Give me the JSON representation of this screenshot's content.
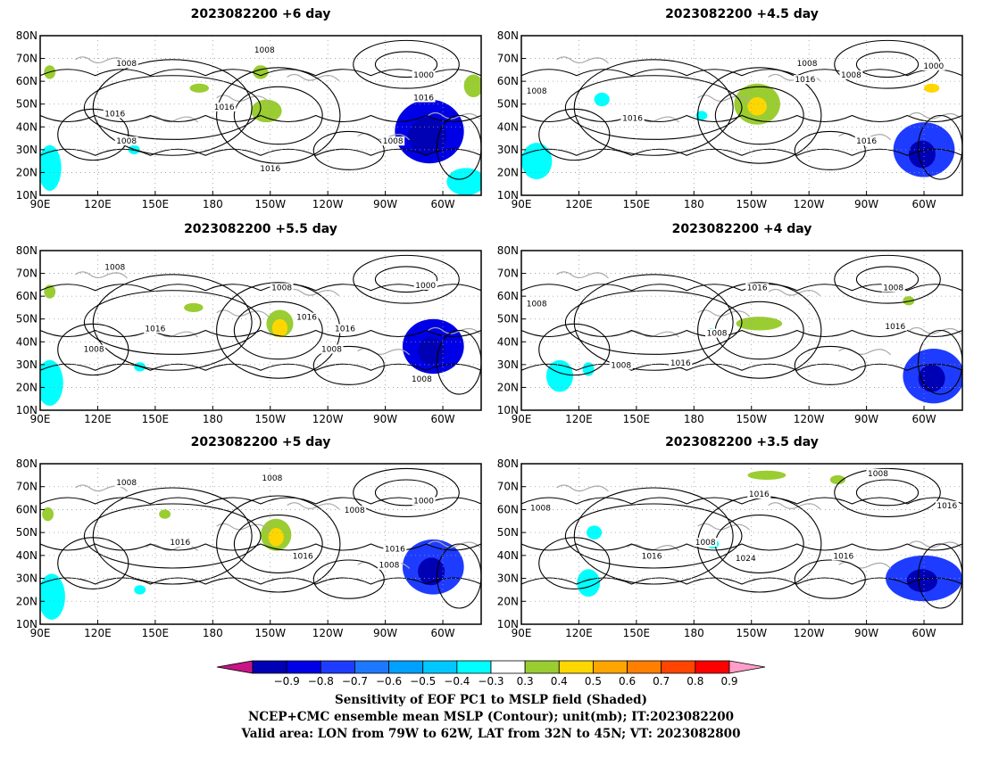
{
  "chart_data": {
    "type": "heatmap",
    "description_fields": {
      "shaded_variable": "Sensitivity of EOF PC1 to MSLP field",
      "contour_variable": "NCEP+CMC ensemble mean MSLP",
      "unit": "mb"
    },
    "lon_ticks": [
      "90E",
      "120E",
      "150E",
      "180",
      "150W",
      "120W",
      "90W",
      "60W"
    ],
    "lat_ticks": [
      "10N",
      "20N",
      "30N",
      "40N",
      "50N",
      "60N",
      "70N",
      "80N"
    ],
    "lon_range_deg_east": [
      90,
      320
    ],
    "lat_range": [
      10,
      80
    ],
    "panels": [
      {
        "id": "p6",
        "title": "2023082200 +6 day",
        "contour_labels": [
          {
            "text": "1008",
            "lon": 135,
            "lat": 67
          },
          {
            "text": "1008",
            "lon": 207,
            "lat": 73
          },
          {
            "text": "1000",
            "lon": 290,
            "lat": 62
          },
          {
            "text": "1016",
            "lon": 129,
            "lat": 45
          },
          {
            "text": "1016",
            "lon": 186,
            "lat": 48
          },
          {
            "text": "1008",
            "lon": 135,
            "lat": 33
          },
          {
            "text": "1016",
            "lon": 290,
            "lat": 52
          },
          {
            "text": "1008",
            "lon": 274,
            "lat": 33
          },
          {
            "text": "1016",
            "lon": 210,
            "lat": 21
          }
        ],
        "shade_regions": [
          {
            "lon": 293,
            "lat": 38,
            "rlon": 18,
            "rlat": 14,
            "value": -0.7
          },
          {
            "lon": 292,
            "lat": 36,
            "rlon": 10,
            "rlat": 8,
            "value": -0.8
          },
          {
            "lon": 312,
            "lat": 16,
            "rlon": 10,
            "rlat": 6,
            "value": -0.3
          },
          {
            "lon": 95,
            "lat": 22,
            "rlon": 6,
            "rlat": 10,
            "value": -0.3
          },
          {
            "lon": 139,
            "lat": 30,
            "rlon": 3,
            "rlat": 2,
            "value": -0.3
          },
          {
            "lon": 208,
            "lat": 47,
            "rlon": 8,
            "rlat": 5,
            "value": 0.3
          },
          {
            "lon": 173,
            "lat": 57,
            "rlon": 5,
            "rlat": 2,
            "value": 0.3
          },
          {
            "lon": 205,
            "lat": 64,
            "rlon": 4,
            "rlat": 3,
            "value": 0.3
          },
          {
            "lon": 95,
            "lat": 64,
            "rlon": 3,
            "rlat": 3,
            "value": 0.3
          },
          {
            "lon": 316,
            "lat": 58,
            "rlon": 5,
            "rlat": 5,
            "value": 0.3
          }
        ]
      },
      {
        "id": "p45",
        "title": "2023082200 +4.5 day",
        "contour_labels": [
          {
            "text": "1008",
            "lon": 239,
            "lat": 67
          },
          {
            "text": "1016",
            "lon": 238,
            "lat": 60
          },
          {
            "text": "1008",
            "lon": 262,
            "lat": 62
          },
          {
            "text": "1000",
            "lon": 305,
            "lat": 66
          },
          {
            "text": "1008",
            "lon": 98,
            "lat": 55
          },
          {
            "text": "1016",
            "lon": 148,
            "lat": 43
          },
          {
            "text": "1016",
            "lon": 270,
            "lat": 33
          }
        ],
        "shade_regions": [
          {
            "lon": 300,
            "lat": 30,
            "rlon": 16,
            "rlat": 12,
            "value": -0.6
          },
          {
            "lon": 299,
            "lat": 28,
            "rlon": 7,
            "rlat": 6,
            "value": -0.8
          },
          {
            "lon": 98,
            "lat": 25,
            "rlon": 8,
            "rlat": 8,
            "value": -0.3
          },
          {
            "lon": 132,
            "lat": 52,
            "rlon": 4,
            "rlat": 3,
            "value": -0.3
          },
          {
            "lon": 184,
            "lat": 45,
            "rlon": 3,
            "rlat": 2,
            "value": -0.3
          },
          {
            "lon": 213,
            "lat": 50,
            "rlon": 12,
            "rlat": 9,
            "value": 0.3
          },
          {
            "lon": 213,
            "lat": 49,
            "rlon": 5,
            "rlat": 4,
            "value": 0.4
          },
          {
            "lon": 304,
            "lat": 57,
            "rlon": 4,
            "rlat": 2,
            "value": 0.4
          }
        ]
      },
      {
        "id": "p55",
        "title": "2023082200 +5.5 day",
        "contour_labels": [
          {
            "text": "1008",
            "lon": 129,
            "lat": 72
          },
          {
            "text": "1008",
            "lon": 216,
            "lat": 63
          },
          {
            "text": "1000",
            "lon": 291,
            "lat": 64
          },
          {
            "text": "1016",
            "lon": 150,
            "lat": 45
          },
          {
            "text": "1016",
            "lon": 229,
            "lat": 50
          },
          {
            "text": "1016",
            "lon": 249,
            "lat": 45
          },
          {
            "text": "1008",
            "lon": 118,
            "lat": 36
          },
          {
            "text": "1008",
            "lon": 242,
            "lat": 36
          },
          {
            "text": "1008",
            "lon": 289,
            "lat": 23
          }
        ],
        "shade_regions": [
          {
            "lon": 295,
            "lat": 38,
            "rlon": 16,
            "rlat": 12,
            "value": -0.7
          },
          {
            "lon": 294,
            "lat": 36,
            "rlon": 7,
            "rlat": 6,
            "value": -0.8
          },
          {
            "lon": 95,
            "lat": 22,
            "rlon": 7,
            "rlat": 10,
            "value": -0.3
          },
          {
            "lon": 142,
            "lat": 29,
            "rlon": 3,
            "rlat": 2,
            "value": -0.3
          },
          {
            "lon": 215,
            "lat": 48,
            "rlon": 7,
            "rlat": 6,
            "value": 0.3
          },
          {
            "lon": 215,
            "lat": 46,
            "rlon": 4,
            "rlat": 4,
            "value": 0.4
          },
          {
            "lon": 95,
            "lat": 62,
            "rlon": 3,
            "rlat": 3,
            "value": 0.3
          },
          {
            "lon": 170,
            "lat": 55,
            "rlon": 5,
            "rlat": 2,
            "value": 0.3
          }
        ]
      },
      {
        "id": "p4",
        "title": "2023082200 +4 day",
        "contour_labels": [
          {
            "text": "1008",
            "lon": 98,
            "lat": 56
          },
          {
            "text": "1016",
            "lon": 213,
            "lat": 63
          },
          {
            "text": "1008",
            "lon": 284,
            "lat": 63
          },
          {
            "text": "1008",
            "lon": 192,
            "lat": 43
          },
          {
            "text": "1016",
            "lon": 285,
            "lat": 46
          },
          {
            "text": "1008",
            "lon": 142,
            "lat": 29
          },
          {
            "text": "1016",
            "lon": 173,
            "lat": 30
          }
        ],
        "shade_regions": [
          {
            "lon": 305,
            "lat": 25,
            "rlon": 16,
            "rlat": 12,
            "value": -0.6
          },
          {
            "lon": 304,
            "lat": 24,
            "rlon": 7,
            "rlat": 6,
            "value": -0.8
          },
          {
            "lon": 110,
            "lat": 25,
            "rlon": 7,
            "rlat": 7,
            "value": -0.3
          },
          {
            "lon": 125,
            "lat": 28,
            "rlon": 3,
            "rlat": 3,
            "value": -0.3
          },
          {
            "lon": 189,
            "lat": 44,
            "rlon": 3,
            "rlat": 2,
            "value": -0.3
          },
          {
            "lon": 214,
            "lat": 48,
            "rlon": 12,
            "rlat": 3,
            "value": 0.3
          },
          {
            "lon": 292,
            "lat": 58,
            "rlon": 3,
            "rlat": 2,
            "value": 0.3
          }
        ]
      },
      {
        "id": "p5",
        "title": "2023082200 +5 day",
        "contour_labels": [
          {
            "text": "1008",
            "lon": 135,
            "lat": 71
          },
          {
            "text": "1008",
            "lon": 211,
            "lat": 73
          },
          {
            "text": "1008",
            "lon": 254,
            "lat": 59
          },
          {
            "text": "1000",
            "lon": 290,
            "lat": 63
          },
          {
            "text": "1016",
            "lon": 163,
            "lat": 45
          },
          {
            "text": "1016",
            "lon": 227,
            "lat": 39
          },
          {
            "text": "1016",
            "lon": 275,
            "lat": 42
          },
          {
            "text": "1008",
            "lon": 272,
            "lat": 35
          }
        ],
        "shade_regions": [
          {
            "lon": 295,
            "lat": 35,
            "rlon": 16,
            "rlat": 12,
            "value": -0.6
          },
          {
            "lon": 294,
            "lat": 33,
            "rlon": 7,
            "rlat": 6,
            "value": -0.8
          },
          {
            "lon": 96,
            "lat": 22,
            "rlon": 7,
            "rlat": 10,
            "value": -0.3
          },
          {
            "lon": 142,
            "lat": 25,
            "rlon": 3,
            "rlat": 2,
            "value": -0.3
          },
          {
            "lon": 213,
            "lat": 49,
            "rlon": 8,
            "rlat": 7,
            "value": 0.3
          },
          {
            "lon": 213,
            "lat": 48,
            "rlon": 4,
            "rlat": 4,
            "value": 0.4
          },
          {
            "lon": 94,
            "lat": 58,
            "rlon": 3,
            "rlat": 3,
            "value": 0.3
          },
          {
            "lon": 155,
            "lat": 58,
            "rlon": 3,
            "rlat": 2,
            "value": 0.3
          }
        ]
      },
      {
        "id": "p35",
        "title": "2023082200 +3.5 day",
        "contour_labels": [
          {
            "text": "1008",
            "lon": 276,
            "lat": 75
          },
          {
            "text": "1016",
            "lon": 214,
            "lat": 66
          },
          {
            "text": "1008",
            "lon": 100,
            "lat": 60
          },
          {
            "text": "1016",
            "lon": 312,
            "lat": 61
          },
          {
            "text": "1008",
            "lon": 186,
            "lat": 45
          },
          {
            "text": "1024",
            "lon": 207,
            "lat": 38
          },
          {
            "text": "1016",
            "lon": 158,
            "lat": 39
          },
          {
            "text": "1016",
            "lon": 258,
            "lat": 39
          }
        ],
        "shade_regions": [
          {
            "lon": 300,
            "lat": 30,
            "rlon": 20,
            "rlat": 10,
            "value": -0.6
          },
          {
            "lon": 299,
            "lat": 29,
            "rlon": 8,
            "rlat": 5,
            "value": -0.8
          },
          {
            "lon": 125,
            "lat": 28,
            "rlon": 6,
            "rlat": 6,
            "value": -0.3
          },
          {
            "lon": 128,
            "lat": 50,
            "rlon": 4,
            "rlat": 3,
            "value": -0.3
          },
          {
            "lon": 190,
            "lat": 45,
            "rlon": 3,
            "rlat": 2,
            "value": -0.3
          },
          {
            "lon": 218,
            "lat": 75,
            "rlon": 10,
            "rlat": 2,
            "value": 0.3
          },
          {
            "lon": 255,
            "lat": 73,
            "rlon": 4,
            "rlat": 2,
            "value": 0.3
          }
        ]
      }
    ],
    "colorbar": {
      "tick_labels": [
        "−0.9",
        "−0.8",
        "−0.7",
        "−0.6",
        "−0.5",
        "−0.4",
        "−0.3",
        "0.3",
        "0.4",
        "0.5",
        "0.6",
        "0.7",
        "0.8",
        "0.9"
      ],
      "colors": [
        "#c71585",
        "#0000b4",
        "#0000e6",
        "#1e3cff",
        "#1e78ff",
        "#00a0ff",
        "#00c8ff",
        "#00ffff",
        "#ffffff",
        "#9acd32",
        "#ffd700",
        "#ffa500",
        "#ff7f00",
        "#ff4500",
        "#ff0000",
        "#ff9ec8"
      ]
    },
    "caption": [
      "Sensitivity of EOF PC1 to MSLP field (Shaded)",
      "NCEP+CMC ensemble mean MSLP (Contour); unit(mb); IT:2023082200",
      "Valid area: LON from 79W to 62W, LAT from 32N to 45N; VT: 2023082800"
    ]
  }
}
